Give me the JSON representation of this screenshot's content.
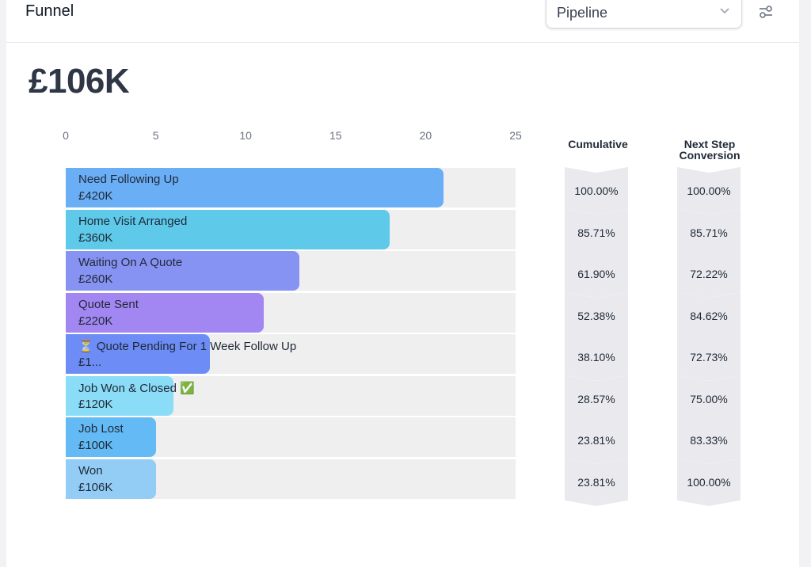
{
  "header": {
    "title": "Funnel",
    "select_value": "Pipeline"
  },
  "total": "£106K",
  "columns": {
    "cumulative": "Cumulative",
    "next_step": "Next Step Conversion"
  },
  "colors": [
    "#6aaef6",
    "#5ec9e9",
    "#8793f2",
    "#a287f2",
    "#6e8cf5",
    "#8adcf7",
    "#63baf4",
    "#93cdf6"
  ],
  "chart_data": {
    "type": "bar",
    "orientation": "horizontal",
    "xlim": [
      0,
      25
    ],
    "ticks": [
      0,
      5,
      10,
      15,
      20,
      25
    ],
    "stages": [
      {
        "label": "Need Following Up",
        "value_label": "£420K",
        "count": 21,
        "cumulative": "100.00%",
        "next_step": "100.00%"
      },
      {
        "label": "Home Visit Arranged",
        "value_label": "£360K",
        "count": 18,
        "cumulative": "85.71%",
        "next_step": "85.71%"
      },
      {
        "label": "Waiting On A Quote",
        "value_label": "£260K",
        "count": 13,
        "cumulative": "61.90%",
        "next_step": "72.22%"
      },
      {
        "label": "Quote Sent",
        "value_label": "£220K",
        "count": 11,
        "cumulative": "52.38%",
        "next_step": "84.62%"
      },
      {
        "label": "⏳ Quote Pending For 1 Week   Follow Up",
        "value_label": "£1...",
        "count": 8,
        "cumulative": "38.10%",
        "next_step": "72.73%"
      },
      {
        "label": "Job Won & Closed ✅",
        "value_label": "£120K",
        "count": 6,
        "cumulative": "28.57%",
        "next_step": "75.00%"
      },
      {
        "label": "Job Lost",
        "value_label": "£100K",
        "count": 5,
        "cumulative": "23.81%",
        "next_step": "83.33%"
      },
      {
        "label": "Won",
        "value_label": "£106K",
        "count": 5,
        "cumulative": "23.81%",
        "next_step": "100.00%"
      }
    ]
  }
}
